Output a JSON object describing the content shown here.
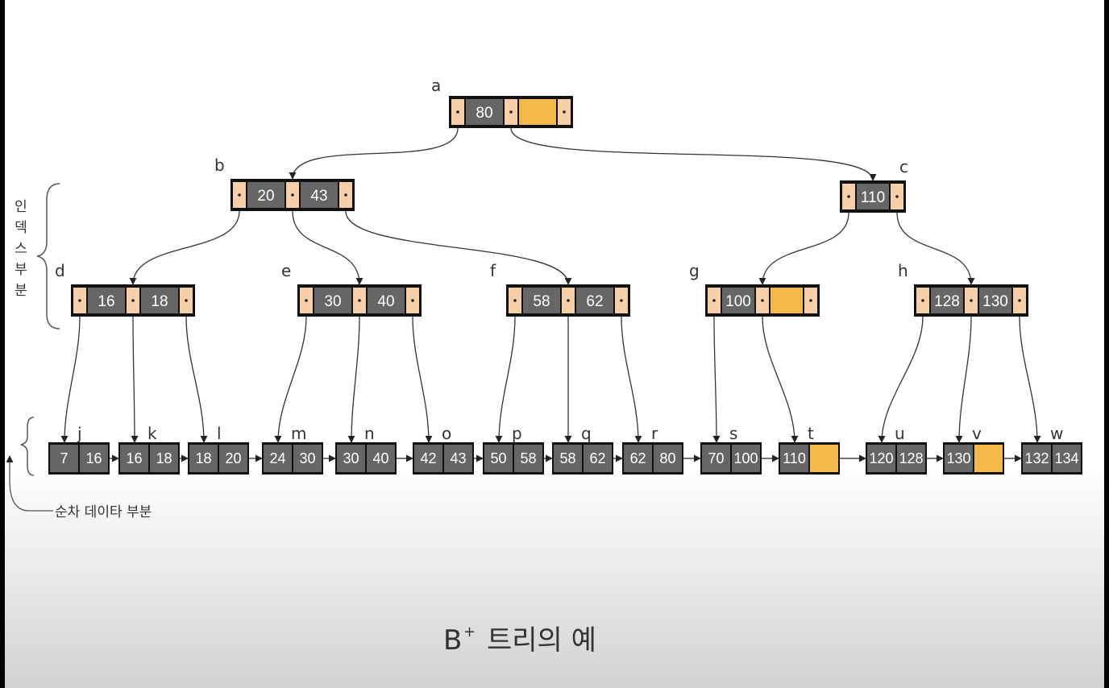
{
  "title": {
    "main": "B",
    "sup": "+",
    "rest": "트리의 예"
  },
  "side_labels": {
    "index_part": [
      "인",
      "덱",
      "스",
      "부",
      "분"
    ],
    "sequential_part": "순차 데이타 부분"
  },
  "colors": {
    "key_cell": "#666666",
    "pointer_cell": "#f6cfa8",
    "empty_slot": "#f4b94a",
    "border": "#111111"
  },
  "nodes": [
    {
      "id": "a",
      "keys": [
        "80",
        ""
      ]
    },
    {
      "id": "b",
      "keys": [
        "20",
        "43"
      ]
    },
    {
      "id": "c",
      "keys": [
        "110"
      ]
    },
    {
      "id": "d",
      "keys": [
        "16",
        "18"
      ]
    },
    {
      "id": "e",
      "keys": [
        "30",
        "40"
      ]
    },
    {
      "id": "f",
      "keys": [
        "58",
        "62"
      ]
    },
    {
      "id": "g",
      "keys": [
        "100",
        ""
      ]
    },
    {
      "id": "h",
      "keys": [
        "128",
        "130"
      ]
    }
  ],
  "leaves": [
    {
      "id": "j",
      "keys": [
        "7",
        "16"
      ]
    },
    {
      "id": "k",
      "keys": [
        "16",
        "18"
      ]
    },
    {
      "id": "l",
      "keys": [
        "18",
        "20"
      ]
    },
    {
      "id": "m",
      "keys": [
        "24",
        "30"
      ]
    },
    {
      "id": "n",
      "keys": [
        "30",
        "40"
      ]
    },
    {
      "id": "o",
      "keys": [
        "42",
        "43"
      ]
    },
    {
      "id": "p",
      "keys": [
        "50",
        "58"
      ]
    },
    {
      "id": "q",
      "keys": [
        "58",
        "62"
      ]
    },
    {
      "id": "r",
      "keys": [
        "62",
        "80"
      ]
    },
    {
      "id": "s",
      "keys": [
        "70",
        "100"
      ]
    },
    {
      "id": "t",
      "keys": [
        "110",
        ""
      ]
    },
    {
      "id": "u",
      "keys": [
        "120",
        "128"
      ]
    },
    {
      "id": "v",
      "keys": [
        "130",
        ""
      ]
    },
    {
      "id": "w",
      "keys": [
        "132",
        "134"
      ]
    }
  ],
  "edges": [
    [
      "a",
      "b"
    ],
    [
      "a",
      "c"
    ],
    [
      "b",
      "d"
    ],
    [
      "b",
      "e"
    ],
    [
      "b",
      "f"
    ],
    [
      "c",
      "g"
    ],
    [
      "c",
      "h"
    ],
    [
      "d",
      "j"
    ],
    [
      "d",
      "k"
    ],
    [
      "d",
      "l"
    ],
    [
      "e",
      "m"
    ],
    [
      "e",
      "n"
    ],
    [
      "e",
      "o"
    ],
    [
      "f",
      "p"
    ],
    [
      "f",
      "q"
    ],
    [
      "f",
      "r"
    ],
    [
      "g",
      "s"
    ],
    [
      "g",
      "t"
    ],
    [
      "h",
      "u"
    ],
    [
      "h",
      "v"
    ],
    [
      "h",
      "w"
    ]
  ]
}
